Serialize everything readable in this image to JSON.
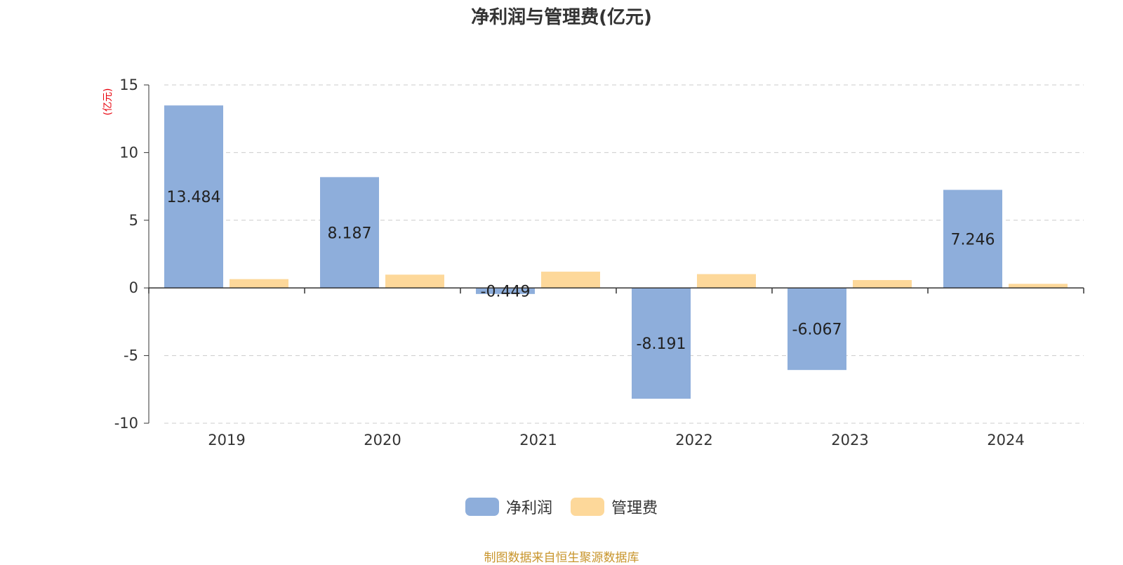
{
  "chart_data": {
    "type": "bar",
    "title": "净利润与管理费(亿元)",
    "ylabel": "(亿元)",
    "categories": [
      "2019",
      "2020",
      "2021",
      "2022",
      "2023",
      "2024"
    ],
    "series": [
      {
        "name": "净利润",
        "values": [
          13.484,
          8.187,
          -0.449,
          -8.191,
          -6.067,
          7.246
        ],
        "color": "#8eaedb",
        "labels": [
          "13.484",
          "8.187",
          "-0.449",
          "-8.191",
          "-6.067",
          "7.246"
        ]
      },
      {
        "name": "管理费",
        "values": [
          0.65,
          0.98,
          1.2,
          1.02,
          0.58,
          0.3
        ],
        "color": "#fdd89a"
      }
    ],
    "ylim": [
      -10,
      15
    ],
    "yticks": [
      15,
      10,
      5,
      0,
      -5,
      -10
    ],
    "grid": true,
    "legend": "bottom-center"
  },
  "source_note": "制图数据来自恒生聚源数据库"
}
